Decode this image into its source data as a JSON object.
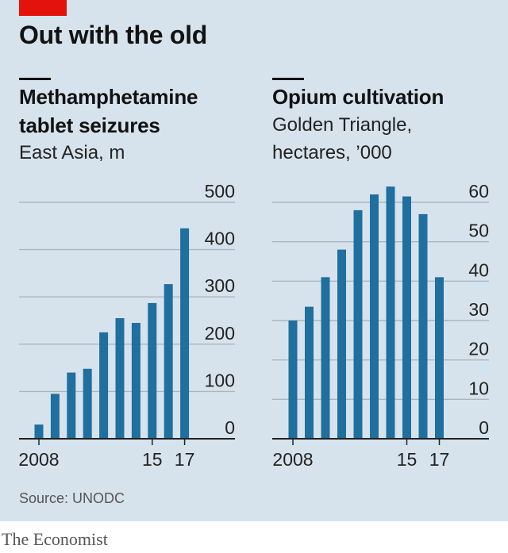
{
  "title": "Out with the old",
  "source": "Source: UNODC",
  "brand": "The Economist",
  "colors": {
    "bar": "#1f6f9f",
    "background": "#d7e3ec",
    "accent": "#e3120b"
  },
  "chart_data": [
    {
      "type": "bar",
      "title": "Methamphetamine tablet seizures",
      "title_lines": [
        "Methamphetamine",
        "tablet seizures"
      ],
      "subtitle_lines": [
        "East Asia, m"
      ],
      "categories": [
        "2008",
        "2009",
        "2010",
        "2011",
        "2012",
        "2013",
        "2014",
        "2015",
        "2016",
        "2017"
      ],
      "values": [
        30,
        95,
        140,
        148,
        225,
        255,
        245,
        287,
        327,
        445
      ],
      "ylim": [
        0,
        500
      ],
      "yticks": [
        "0",
        "100",
        "200",
        "300",
        "400",
        "500"
      ],
      "xtick_labels": [
        "2008",
        "",
        "",
        "",
        "",
        "",
        "",
        "15",
        "",
        "17"
      ],
      "xlabel": "",
      "ylabel": "",
      "grid": true
    },
    {
      "type": "bar",
      "title": "Opium cultivation",
      "title_lines": [
        "Opium cultivation"
      ],
      "subtitle_lines": [
        "Golden Triangle,",
        "hectares, ’000"
      ],
      "categories": [
        "2008",
        "2009",
        "2010",
        "2011",
        "2012",
        "2013",
        "2014",
        "2015",
        "2016",
        "2017"
      ],
      "values": [
        30,
        33.5,
        41,
        48,
        58,
        62,
        64,
        61.5,
        57,
        41
      ],
      "ylim": [
        0,
        60
      ],
      "yticks": [
        "0",
        "10",
        "20",
        "30",
        "40",
        "50",
        "60"
      ],
      "xtick_labels": [
        "2008",
        "",
        "",
        "",
        "",
        "",
        "",
        "15",
        "",
        "17"
      ],
      "xlabel": "",
      "ylabel": "",
      "grid": true
    }
  ]
}
